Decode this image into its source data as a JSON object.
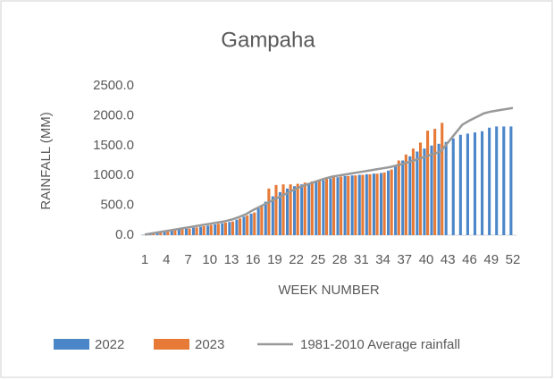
{
  "chart_data": {
    "type": "bar",
    "title": "Gampaha",
    "x_label": "WEEK NUMBER",
    "y_label": "RAINFALL (MM)",
    "categories": [
      1,
      null,
      null,
      4,
      null,
      null,
      7,
      null,
      null,
      10,
      null,
      null,
      13,
      null,
      null,
      16,
      null,
      null,
      19,
      null,
      null,
      22,
      null,
      null,
      25,
      null,
      null,
      28,
      null,
      null,
      31,
      null,
      null,
      34,
      null,
      null,
      37,
      null,
      null,
      40,
      null,
      null,
      43,
      null,
      null,
      46,
      null,
      null,
      49,
      null,
      null,
      52
    ],
    "series": [
      {
        "name": "2022",
        "type": "bar",
        "color": "#4a86c8",
        "values": [
          5,
          25,
          45,
          60,
          75,
          95,
          110,
          125,
          140,
          160,
          180,
          200,
          220,
          260,
          310,
          360,
          450,
          560,
          650,
          720,
          780,
          820,
          850,
          870,
          890,
          920,
          950,
          970,
          990,
          1000,
          1010,
          1020,
          1030,
          1040,
          1080,
          1150,
          1250,
          1320,
          1400,
          1450,
          1500,
          1530,
          1560,
          1620,
          1680,
          1700,
          1720,
          1740,
          1800,
          1820,
          1820,
          1820
        ]
      },
      {
        "name": "2023",
        "type": "bar",
        "color": "#e67a36",
        "values": [
          10,
          30,
          50,
          60,
          80,
          100,
          110,
          130,
          150,
          170,
          190,
          210,
          230,
          280,
          330,
          380,
          480,
          780,
          840,
          850,
          850,
          860,
          880,
          900,
          920,
          960,
          970,
          980,
          990,
          1000,
          1010,
          1020,
          1030,
          1050,
          1100,
          1250,
          1350,
          1450,
          1550,
          1750,
          1780,
          1880,
          null,
          null,
          null,
          null,
          null,
          null,
          null,
          null,
          null,
          null
        ]
      },
      {
        "name": "1981-2010 Average rainfall",
        "type": "line",
        "color": "#999999",
        "values": [
          10,
          30,
          50,
          70,
          90,
          110,
          130,
          150,
          170,
          190,
          210,
          230,
          260,
          300,
          350,
          420,
          480,
          540,
          600,
          660,
          720,
          780,
          830,
          870,
          910,
          950,
          980,
          1000,
          1020,
          1040,
          1060,
          1080,
          1100,
          1120,
          1140,
          1170,
          1200,
          1240,
          1280,
          1320,
          1360,
          1400,
          1550,
          1700,
          1850,
          1920,
          1980,
          2040,
          2070,
          2090,
          2110,
          2130
        ]
      }
    ],
    "ylim": [
      0,
      2500
    ],
    "yticks": [
      {
        "value": 0,
        "label": "0.0"
      },
      {
        "value": 500,
        "label": "500.0"
      },
      {
        "value": 1000,
        "label": "1000.0"
      },
      {
        "value": 1500,
        "label": "1500.0"
      },
      {
        "value": 2000,
        "label": "2000.0"
      },
      {
        "value": 2500,
        "label": "2500.0"
      }
    ],
    "grid": false,
    "legend": "bottom"
  }
}
